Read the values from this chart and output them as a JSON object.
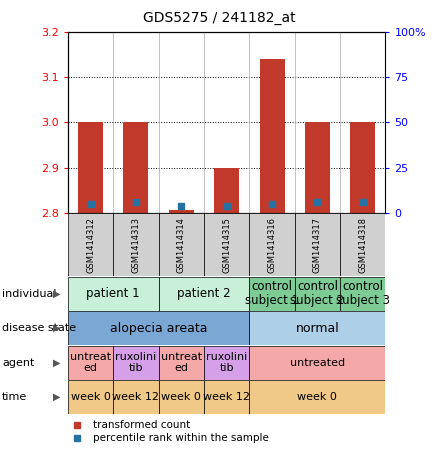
{
  "title": "GDS5275 / 241182_at",
  "samples": [
    "GSM1414312",
    "GSM1414313",
    "GSM1414314",
    "GSM1414315",
    "GSM1414316",
    "GSM1414317",
    "GSM1414318"
  ],
  "transformed_count": [
    3.0,
    3.0,
    2.806,
    2.9,
    3.14,
    3.0,
    3.0
  ],
  "percentile_rank": [
    5,
    6,
    4,
    4,
    5,
    6,
    6
  ],
  "bar_bottom": 2.8,
  "ylim": [
    2.8,
    3.2
  ],
  "y2lim": [
    0,
    100
  ],
  "y_ticks": [
    2.8,
    2.9,
    3.0,
    3.1,
    3.2
  ],
  "y2_ticks": [
    0,
    25,
    50,
    75,
    100
  ],
  "y2_labels": [
    "0",
    "25",
    "50",
    "75",
    "100%"
  ],
  "bar_color": "#c0392b",
  "blue_color": "#2471a3",
  "individual_groups": [
    {
      "label": "patient 1",
      "cols": [
        0,
        1
      ],
      "color": "#c8f0d8"
    },
    {
      "label": "patient 2",
      "cols": [
        2,
        3
      ],
      "color": "#c8f0d8"
    },
    {
      "label": "control\nsubject 1",
      "cols": [
        4
      ],
      "color": "#7dcc96"
    },
    {
      "label": "control\nsubject 2",
      "cols": [
        5
      ],
      "color": "#7dcc96"
    },
    {
      "label": "control\nsubject 3",
      "cols": [
        6
      ],
      "color": "#7dcc96"
    }
  ],
  "disease_groups": [
    {
      "label": "alopecia areata",
      "cols": [
        0,
        1,
        2,
        3
      ],
      "color": "#7ba7d4"
    },
    {
      "label": "normal",
      "cols": [
        4,
        5,
        6
      ],
      "color": "#aecfe8"
    }
  ],
  "agent_groups": [
    {
      "label": "untreat\ned",
      "cols": [
        0
      ],
      "color": "#f4a9a8"
    },
    {
      "label": "ruxolini\ntib",
      "cols": [
        1
      ],
      "color": "#d5a0e8"
    },
    {
      "label": "untreat\ned",
      "cols": [
        2
      ],
      "color": "#f4a9a8"
    },
    {
      "label": "ruxolini\ntib",
      "cols": [
        3
      ],
      "color": "#d5a0e8"
    },
    {
      "label": "untreated",
      "cols": [
        4,
        5,
        6
      ],
      "color": "#f4a9a8"
    }
  ],
  "time_groups": [
    {
      "label": "week 0",
      "cols": [
        0
      ],
      "color": "#f0c888"
    },
    {
      "label": "week 12",
      "cols": [
        1
      ],
      "color": "#f0c888"
    },
    {
      "label": "week 0",
      "cols": [
        2
      ],
      "color": "#f0c888"
    },
    {
      "label": "week 12",
      "cols": [
        3
      ],
      "color": "#f0c888"
    },
    {
      "label": "week 0",
      "cols": [
        4,
        5,
        6
      ],
      "color": "#f0c888"
    }
  ],
  "row_labels": [
    "individual",
    "disease state",
    "agent",
    "time"
  ],
  "legend_red": "transformed count",
  "legend_blue": "percentile rank within the sample",
  "xtick_bg": "#d0d0d0"
}
